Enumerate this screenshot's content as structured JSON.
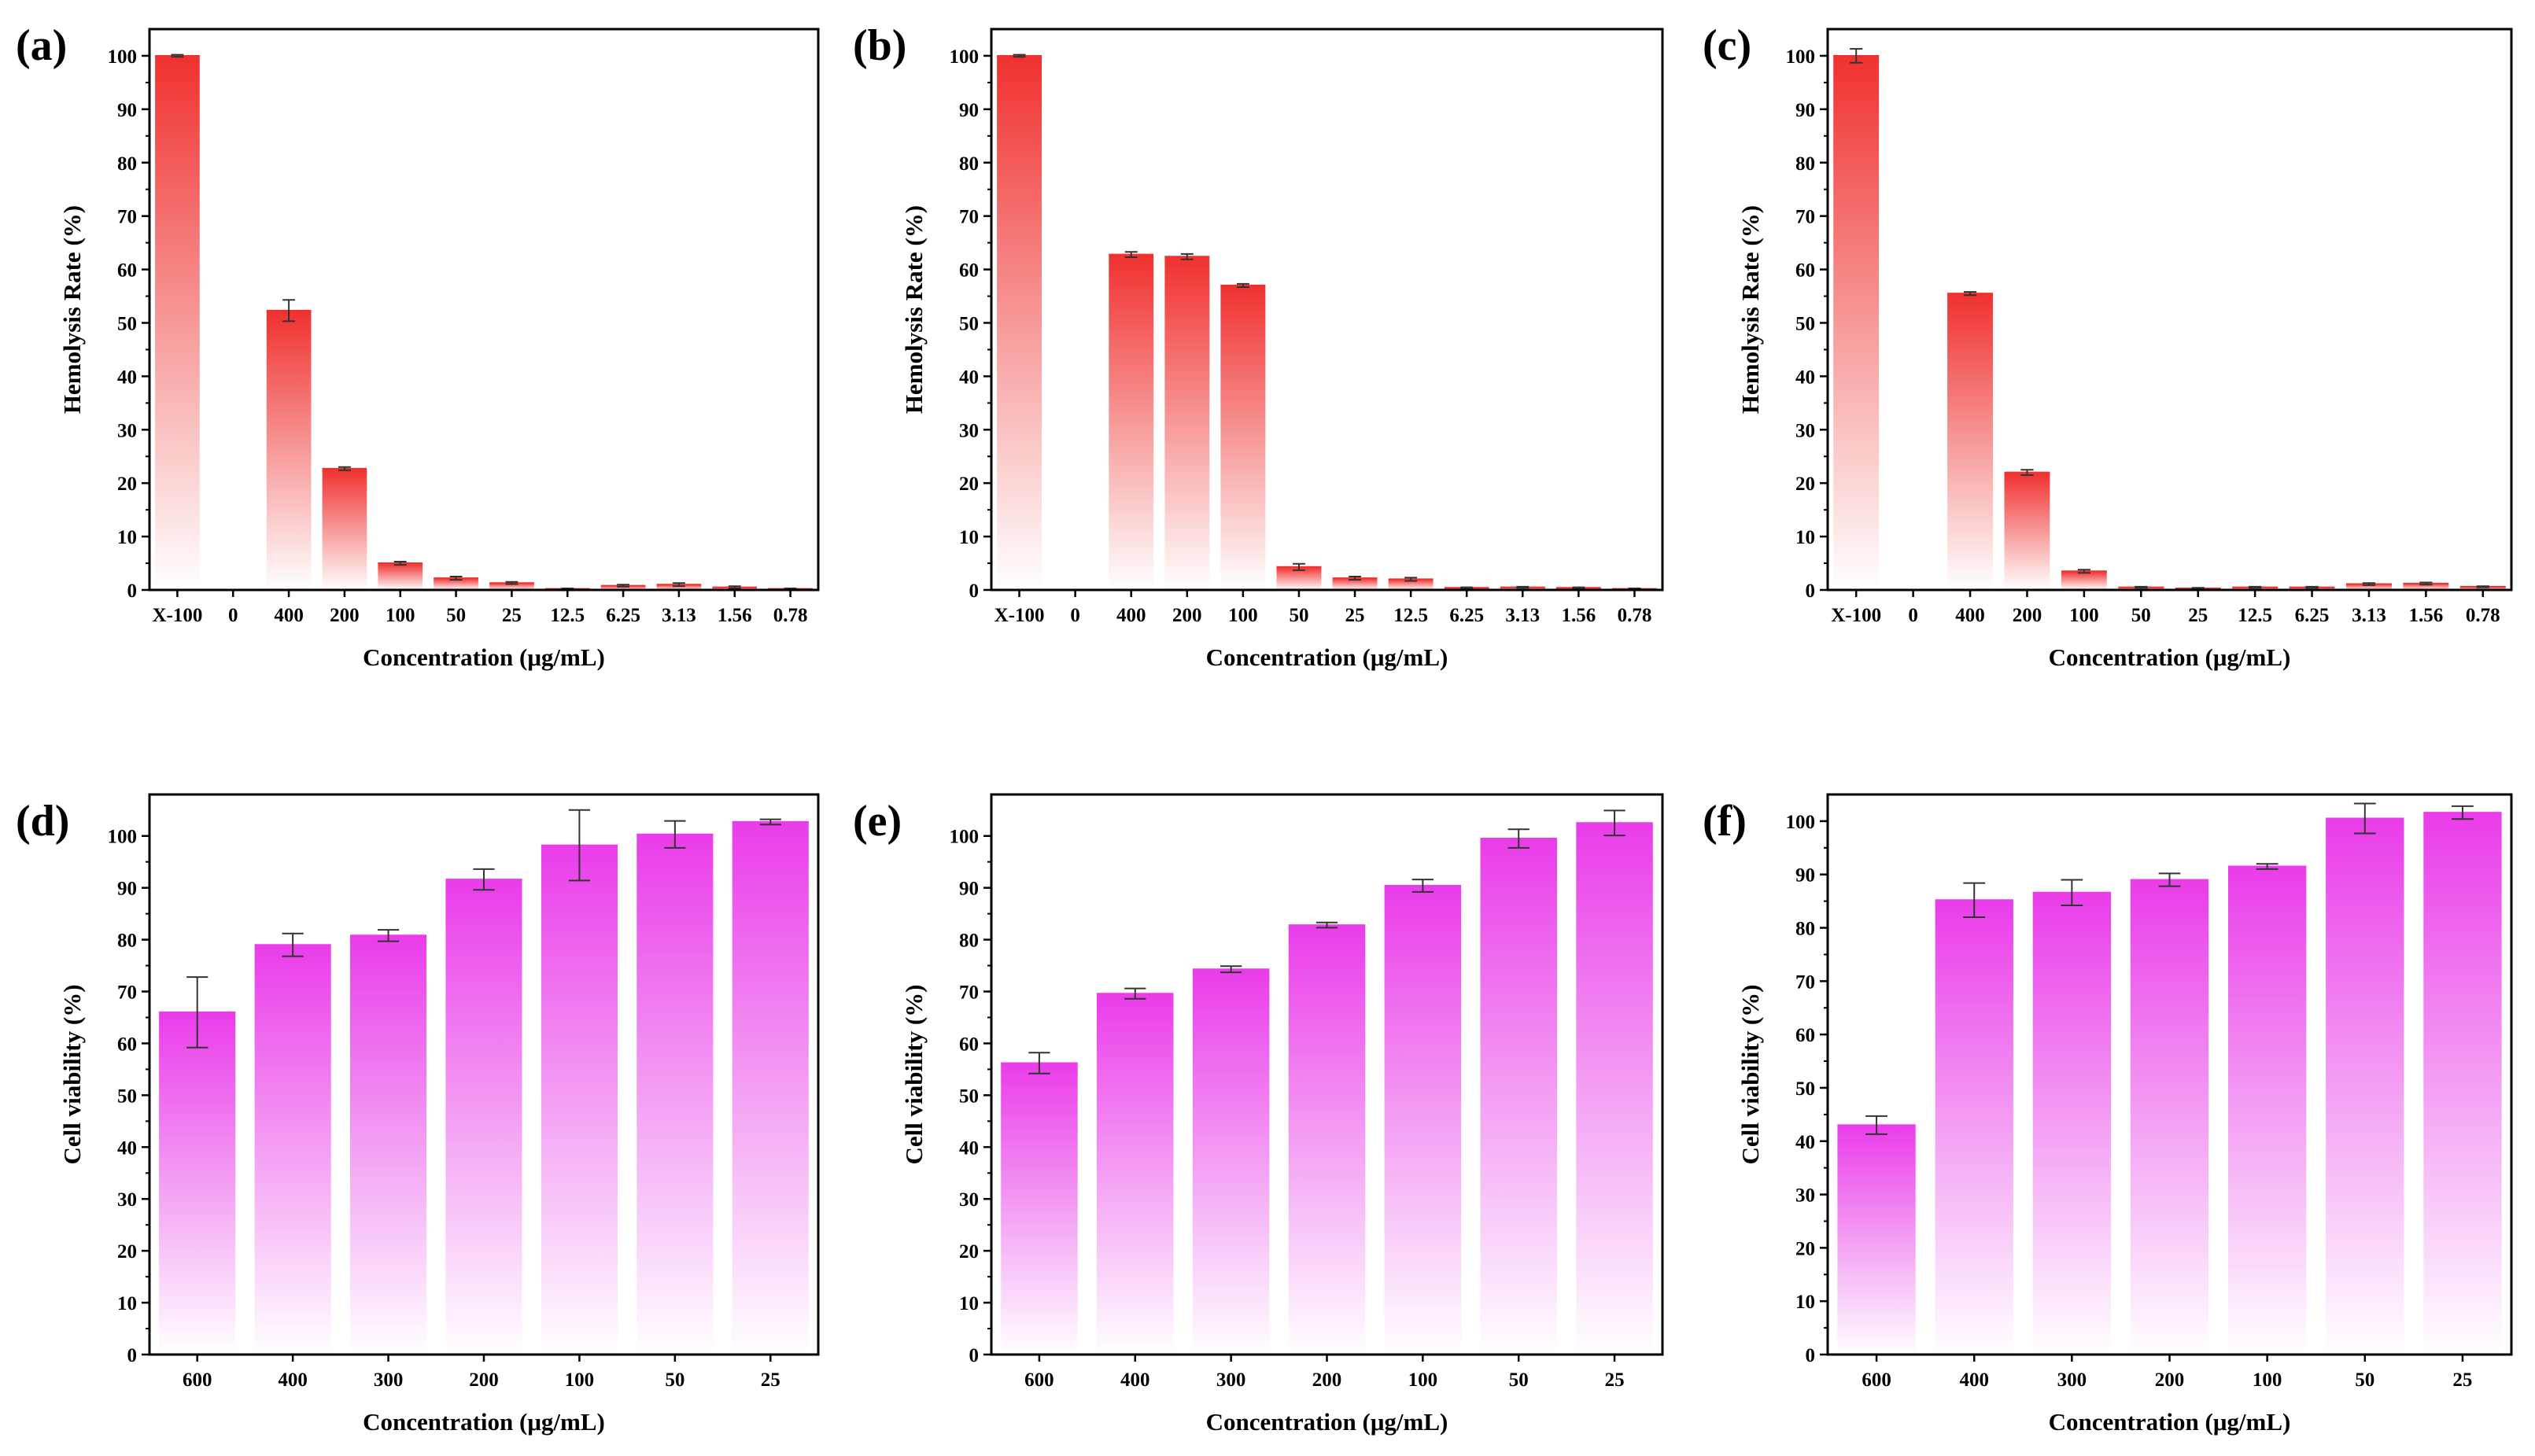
{
  "colors": {
    "hemolysis_bar": "#f0312f",
    "viability_bar": "#ea3cea",
    "axis": "#000000",
    "error_bar": "#333333"
  },
  "chart_data": [
    {
      "panel": "(a)",
      "type": "bar",
      "title": "",
      "xlabel": "Concentration (μg/mL)",
      "ylabel": "Hemolysis Rate (%)",
      "ylim": [
        0,
        105
      ],
      "yticks": [
        0,
        10,
        20,
        30,
        40,
        50,
        60,
        70,
        80,
        90,
        100
      ],
      "categories": [
        "X-100",
        "0",
        "400",
        "200",
        "100",
        "50",
        "25",
        "12.5",
        "6.25",
        "3.13",
        "1.56",
        "0.78"
      ],
      "values": [
        100,
        0,
        52.3,
        22.7,
        5.0,
        2.2,
        1.3,
        0.2,
        0.8,
        1.0,
        0.5,
        0.2
      ],
      "errors": [
        0.2,
        0,
        2.0,
        0.3,
        0.3,
        0.3,
        0.2,
        0.1,
        0.2,
        0.3,
        0.2,
        0.1
      ],
      "grid": false
    },
    {
      "panel": "(b)",
      "type": "bar",
      "title": "",
      "xlabel": "Concentration (μg/mL)",
      "ylabel": "Hemolysis Rate (%)",
      "ylim": [
        0,
        105
      ],
      "yticks": [
        0,
        10,
        20,
        30,
        40,
        50,
        60,
        70,
        80,
        90,
        100
      ],
      "categories": [
        "X-100",
        "0",
        "400",
        "200",
        "100",
        "50",
        "25",
        "12.5",
        "6.25",
        "3.13",
        "1.56",
        "0.78"
      ],
      "values": [
        100,
        0,
        62.8,
        62.4,
        57.0,
        4.3,
        2.2,
        2.0,
        0.4,
        0.5,
        0.4,
        0.2
      ],
      "errors": [
        0.2,
        0,
        0.5,
        0.5,
        0.3,
        0.6,
        0.3,
        0.3,
        0.1,
        0.1,
        0.1,
        0.1
      ],
      "grid": false
    },
    {
      "panel": "(c)",
      "type": "bar",
      "title": "",
      "xlabel": "Concentration (μg/mL)",
      "ylabel": "Hemolysis Rate (%)",
      "ylim": [
        0,
        105
      ],
      "yticks": [
        0,
        10,
        20,
        30,
        40,
        50,
        60,
        70,
        80,
        90,
        100
      ],
      "categories": [
        "X-100",
        "0",
        "400",
        "200",
        "100",
        "50",
        "25",
        "12.5",
        "6.25",
        "3.13",
        "1.56",
        "0.78"
      ],
      "values": [
        100,
        0,
        55.5,
        22.0,
        3.5,
        0.5,
        0.3,
        0.5,
        0.5,
        1.1,
        1.2,
        0.6
      ],
      "errors": [
        1.3,
        0,
        0.3,
        0.5,
        0.3,
        0.1,
        0.1,
        0.1,
        0.1,
        0.2,
        0.2,
        0.1
      ],
      "grid": false
    },
    {
      "panel": "(d)",
      "type": "bar",
      "title": "",
      "xlabel": "Concentration (μg/mL)",
      "ylabel": "Cell viability (%)",
      "ylim": [
        0,
        108
      ],
      "yticks": [
        0,
        10,
        20,
        30,
        40,
        50,
        60,
        70,
        80,
        90,
        100
      ],
      "categories": [
        "600",
        "400",
        "300",
        "200",
        "100",
        "50",
        "25"
      ],
      "values": [
        66.0,
        79.0,
        80.8,
        91.6,
        98.2,
        100.3,
        102.7
      ],
      "errors": [
        6.8,
        2.2,
        1.1,
        2.0,
        6.8,
        2.6,
        0.5
      ],
      "grid": false
    },
    {
      "panel": "(e)",
      "type": "bar",
      "title": "",
      "xlabel": "Concentration (μg/mL)",
      "ylabel": "Cell viability (%)",
      "ylim": [
        0,
        108
      ],
      "yticks": [
        0,
        10,
        20,
        30,
        40,
        50,
        60,
        70,
        80,
        90,
        100
      ],
      "categories": [
        "600",
        "400",
        "300",
        "200",
        "100",
        "50",
        "25"
      ],
      "values": [
        56.2,
        69.6,
        74.3,
        82.8,
        90.4,
        99.5,
        102.5
      ],
      "errors": [
        2.0,
        1.0,
        0.6,
        0.5,
        1.2,
        1.8,
        2.4
      ],
      "grid": false
    },
    {
      "panel": "(f)",
      "type": "bar",
      "title": "",
      "xlabel": "Concentration (μg/mL)",
      "ylabel": "Cell viability (%)",
      "ylim": [
        0,
        105
      ],
      "yticks": [
        0,
        10,
        20,
        30,
        40,
        50,
        60,
        70,
        80,
        90,
        100
      ],
      "categories": [
        "600",
        "400",
        "300",
        "200",
        "100",
        "50",
        "25"
      ],
      "values": [
        43.0,
        85.2,
        86.6,
        89.0,
        91.5,
        100.5,
        101.6
      ],
      "errors": [
        1.7,
        3.2,
        2.4,
        1.2,
        0.5,
        2.8,
        1.2
      ],
      "grid": false
    }
  ]
}
